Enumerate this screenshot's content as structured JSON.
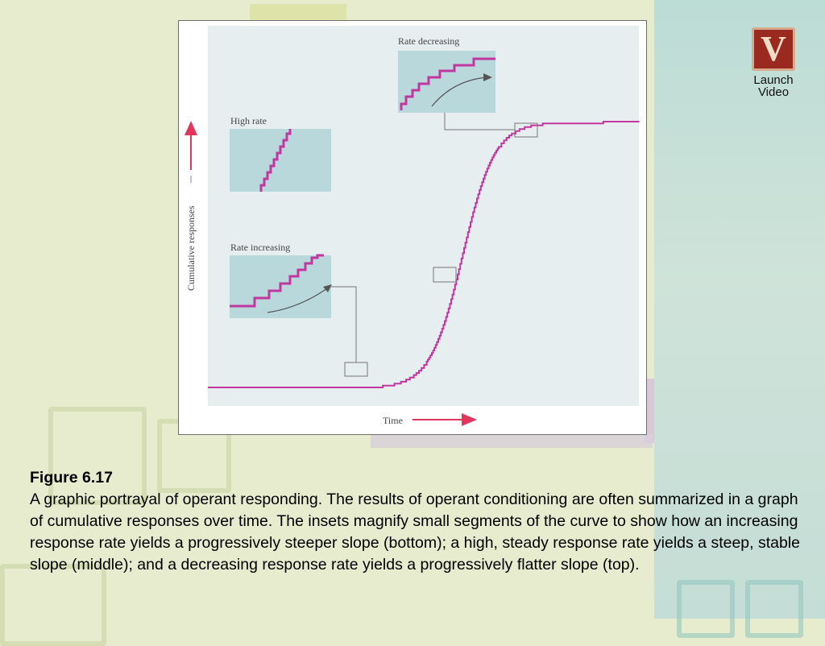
{
  "slide": {
    "figure_title": "Figure 6.17",
    "caption": "A graphic portrayal of operant responding. The results of operant conditioning are often summarized in a graph of cumulative responses over time. The insets magnify small segments of the curve to show how an increasing response rate yields a progressively steeper slope (bottom); a high, steady response rate yields a steep, stable slope (middle); and a decreasing response rate yields a progressively flatter slope (top)."
  },
  "launch_button": {
    "label_line1": "Launch",
    "label_line2": "Video",
    "icon_letter": "V",
    "icon": "video-icon"
  },
  "diagram": {
    "y_axis_label": "Cumulative responses",
    "x_axis_label": "Time",
    "insets": {
      "high_rate": "High rate",
      "rate_increasing": "Rate increasing",
      "rate_decreasing": "Rate decreasing"
    },
    "colors": {
      "curve": "#c2369f",
      "arrow": "#e0385d",
      "plot_bg": "#e6eef0",
      "inset_bg": "#b9d8dc"
    }
  }
}
